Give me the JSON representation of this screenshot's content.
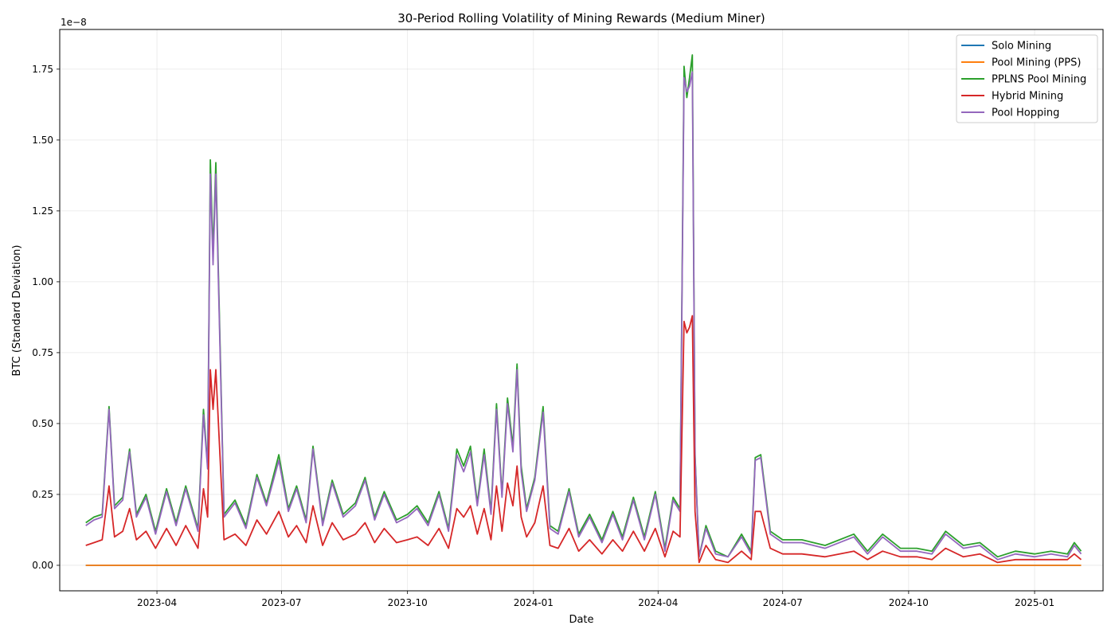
{
  "chart_data": {
    "type": "line",
    "title": "30-Period Rolling Volatility of Mining Rewards (Medium Miner)",
    "xlabel": "Date",
    "ylabel": "BTC (Standard Deviation)",
    "y_offset_label": "1e−8",
    "y_scale_exponent": -8,
    "xlim": [
      "2023-01-20",
      "2025-02-20"
    ],
    "ylim": [
      -0.09,
      1.89
    ],
    "x_ticks": [
      {
        "date": "2023-04-01",
        "label": "2023-04"
      },
      {
        "date": "2023-07-01",
        "label": "2023-07"
      },
      {
        "date": "2023-10-01",
        "label": "2023-10"
      },
      {
        "date": "2024-01-01",
        "label": "2024-01"
      },
      {
        "date": "2024-04-01",
        "label": "2024-04"
      },
      {
        "date": "2024-07-01",
        "label": "2024-07"
      },
      {
        "date": "2024-10-01",
        "label": "2024-10"
      },
      {
        "date": "2025-01-01",
        "label": "2025-01"
      }
    ],
    "y_ticks": [
      {
        "value": 0.0,
        "label": "0.00"
      },
      {
        "value": 0.25,
        "label": "0.25"
      },
      {
        "value": 0.5,
        "label": "0.50"
      },
      {
        "value": 0.75,
        "label": "0.75"
      },
      {
        "value": 1.0,
        "label": "1.00"
      },
      {
        "value": 1.25,
        "label": "1.25"
      },
      {
        "value": 1.5,
        "label": "1.50"
      },
      {
        "value": 1.75,
        "label": "1.75"
      }
    ],
    "grid": true,
    "legend_position": "top-right",
    "x": [
      "2023-02-08",
      "2023-02-14",
      "2023-02-20",
      "2023-02-25",
      "2023-03-01",
      "2023-03-07",
      "2023-03-12",
      "2023-03-17",
      "2023-03-24",
      "2023-03-31",
      "2023-04-08",
      "2023-04-15",
      "2023-04-22",
      "2023-05-01",
      "2023-05-05",
      "2023-05-08",
      "2023-05-10",
      "2023-05-12",
      "2023-05-14",
      "2023-05-20",
      "2023-05-28",
      "2023-06-05",
      "2023-06-13",
      "2023-06-20",
      "2023-06-29",
      "2023-07-06",
      "2023-07-12",
      "2023-07-19",
      "2023-07-24",
      "2023-07-31",
      "2023-08-07",
      "2023-08-15",
      "2023-08-24",
      "2023-08-31",
      "2023-09-07",
      "2023-09-14",
      "2023-09-23",
      "2023-10-01",
      "2023-10-08",
      "2023-10-16",
      "2023-10-24",
      "2023-10-31",
      "2023-11-06",
      "2023-11-11",
      "2023-11-16",
      "2023-11-21",
      "2023-11-26",
      "2023-12-01",
      "2023-12-05",
      "2023-12-09",
      "2023-12-13",
      "2023-12-17",
      "2023-12-20",
      "2023-12-23",
      "2023-12-27",
      "2024-01-02",
      "2024-01-08",
      "2024-01-13",
      "2024-01-19",
      "2024-01-27",
      "2024-02-03",
      "2024-02-11",
      "2024-02-20",
      "2024-02-28",
      "2024-03-06",
      "2024-03-14",
      "2024-03-22",
      "2024-03-30",
      "2024-04-06",
      "2024-04-12",
      "2024-04-17",
      "2024-04-20",
      "2024-04-22",
      "2024-04-24",
      "2024-04-26",
      "2024-04-28",
      "2024-05-01",
      "2024-05-06",
      "2024-05-13",
      "2024-05-22",
      "2024-06-01",
      "2024-06-08",
      "2024-06-11",
      "2024-06-15",
      "2024-06-22",
      "2024-07-01",
      "2024-07-15",
      "2024-08-01",
      "2024-08-22",
      "2024-09-01",
      "2024-09-12",
      "2024-09-25",
      "2024-10-07",
      "2024-10-18",
      "2024-10-28",
      "2024-11-10",
      "2024-11-22",
      "2024-12-05",
      "2024-12-18",
      "2025-01-01",
      "2025-01-13",
      "2025-01-25",
      "2025-01-30",
      "2025-02-04"
    ],
    "series": [
      {
        "name": "Solo Mining",
        "color": "#1f77b4",
        "constant": 0.0
      },
      {
        "name": "Pool Mining (PPS)",
        "color": "#ff7f0e",
        "constant": 0.0
      },
      {
        "name": "PPLNS Pool Mining",
        "color": "#2ca02c",
        "values": [
          0.15,
          0.17,
          0.18,
          0.56,
          0.21,
          0.24,
          0.41,
          0.18,
          0.25,
          0.12,
          0.27,
          0.15,
          0.28,
          0.13,
          0.55,
          0.35,
          1.43,
          1.1,
          1.42,
          0.18,
          0.23,
          0.14,
          0.32,
          0.22,
          0.39,
          0.2,
          0.28,
          0.16,
          0.42,
          0.15,
          0.3,
          0.18,
          0.22,
          0.31,
          0.17,
          0.26,
          0.16,
          0.18,
          0.21,
          0.15,
          0.26,
          0.13,
          0.41,
          0.35,
          0.42,
          0.22,
          0.41,
          0.19,
          0.57,
          0.25,
          0.59,
          0.42,
          0.71,
          0.35,
          0.2,
          0.31,
          0.56,
          0.14,
          0.12,
          0.27,
          0.11,
          0.18,
          0.09,
          0.19,
          0.1,
          0.24,
          0.1,
          0.26,
          0.06,
          0.24,
          0.2,
          1.76,
          1.65,
          1.72,
          1.8,
          0.39,
          0.03,
          0.14,
          0.05,
          0.03,
          0.11,
          0.05,
          0.38,
          0.39,
          0.12,
          0.09,
          0.09,
          0.07,
          0.11,
          0.05,
          0.11,
          0.06,
          0.06,
          0.05,
          0.12,
          0.07,
          0.08,
          0.03,
          0.05,
          0.04,
          0.05,
          0.04,
          0.08,
          0.05
        ]
      },
      {
        "name": "Hybrid Mining",
        "color": "#d62728",
        "values": [
          0.07,
          0.08,
          0.09,
          0.28,
          0.1,
          0.12,
          0.2,
          0.09,
          0.12,
          0.06,
          0.13,
          0.07,
          0.14,
          0.06,
          0.27,
          0.17,
          0.69,
          0.55,
          0.69,
          0.09,
          0.11,
          0.07,
          0.16,
          0.11,
          0.19,
          0.1,
          0.14,
          0.08,
          0.21,
          0.07,
          0.15,
          0.09,
          0.11,
          0.15,
          0.08,
          0.13,
          0.08,
          0.09,
          0.1,
          0.07,
          0.13,
          0.06,
          0.2,
          0.17,
          0.21,
          0.11,
          0.2,
          0.09,
          0.28,
          0.12,
          0.29,
          0.21,
          0.35,
          0.17,
          0.1,
          0.15,
          0.28,
          0.07,
          0.06,
          0.13,
          0.05,
          0.09,
          0.04,
          0.09,
          0.05,
          0.12,
          0.05,
          0.13,
          0.03,
          0.12,
          0.1,
          0.86,
          0.82,
          0.84,
          0.88,
          0.19,
          0.01,
          0.07,
          0.02,
          0.01,
          0.05,
          0.02,
          0.19,
          0.19,
          0.06,
          0.04,
          0.04,
          0.03,
          0.05,
          0.02,
          0.05,
          0.03,
          0.03,
          0.02,
          0.06,
          0.03,
          0.04,
          0.01,
          0.02,
          0.02,
          0.02,
          0.02,
          0.04,
          0.02
        ]
      },
      {
        "name": "Pool Hopping",
        "color": "#9467bd",
        "values": [
          0.14,
          0.16,
          0.17,
          0.55,
          0.2,
          0.23,
          0.4,
          0.17,
          0.24,
          0.11,
          0.26,
          0.14,
          0.27,
          0.12,
          0.53,
          0.34,
          1.38,
          1.06,
          1.38,
          0.17,
          0.22,
          0.13,
          0.31,
          0.21,
          0.37,
          0.19,
          0.27,
          0.15,
          0.41,
          0.14,
          0.29,
          0.17,
          0.21,
          0.3,
          0.16,
          0.25,
          0.15,
          0.17,
          0.2,
          0.14,
          0.25,
          0.12,
          0.39,
          0.33,
          0.4,
          0.21,
          0.39,
          0.18,
          0.55,
          0.24,
          0.57,
          0.4,
          0.69,
          0.33,
          0.19,
          0.3,
          0.54,
          0.13,
          0.11,
          0.26,
          0.1,
          0.17,
          0.08,
          0.18,
          0.09,
          0.23,
          0.09,
          0.25,
          0.05,
          0.23,
          0.19,
          1.72,
          1.67,
          1.69,
          1.74,
          0.38,
          0.03,
          0.13,
          0.04,
          0.03,
          0.1,
          0.04,
          0.37,
          0.38,
          0.11,
          0.08,
          0.08,
          0.06,
          0.1,
          0.04,
          0.1,
          0.05,
          0.05,
          0.04,
          0.11,
          0.06,
          0.07,
          0.02,
          0.04,
          0.03,
          0.04,
          0.03,
          0.07,
          0.04
        ]
      }
    ]
  }
}
